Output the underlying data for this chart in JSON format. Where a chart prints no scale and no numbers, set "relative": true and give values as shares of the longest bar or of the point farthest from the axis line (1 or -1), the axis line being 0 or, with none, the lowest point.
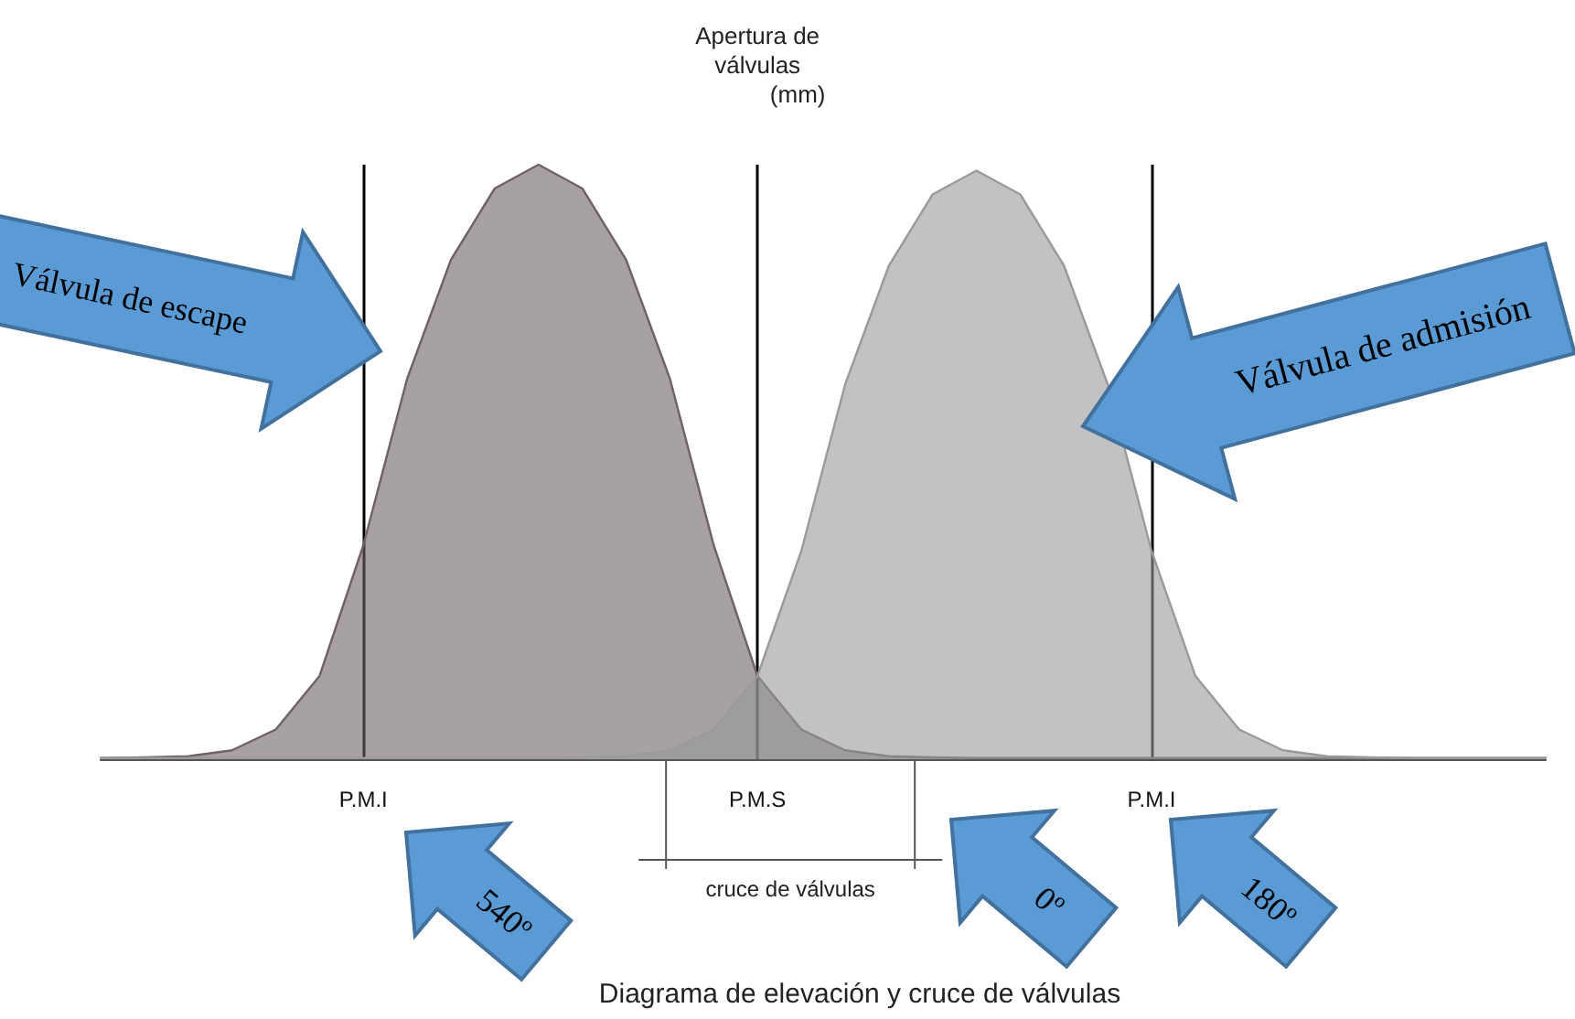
{
  "chart_data": {
    "type": "area",
    "relative": true,
    "ylabel": "Apertura de válvulas (mm)",
    "grid": "x",
    "marker": "none",
    "categories": [
      null,
      null,
      null,
      null,
      null,
      null,
      "P.M.I",
      null,
      null,
      null,
      null,
      null,
      null,
      null,
      null,
      "P.M.S",
      null,
      null,
      null,
      null,
      null,
      null,
      null,
      null,
      "P.M.I",
      null,
      null,
      null,
      null,
      null,
      null,
      null,
      null,
      null
    ],
    "series": [
      {
        "color": "#6e6266",
        "values": [
          0.002,
          0.003,
          0.005,
          0.015,
          0.05,
          0.14,
          0.36,
          0.64,
          0.84,
          0.96,
          1,
          0.96,
          0.84,
          0.64,
          0.36,
          0.14,
          0.05,
          0.015,
          0.005,
          0.003,
          0.002,
          0.002,
          0.002,
          0.002,
          0.002,
          0.002,
          0.002,
          0.002,
          0.002,
          0.002,
          0.002,
          0.002,
          0.002,
          0.002
        ]
      },
      {
        "color": "#9a9a9a",
        "values": [
          0.002,
          0.002,
          0.002,
          0.002,
          0.002,
          0.002,
          0.002,
          0.002,
          0.002,
          0.002,
          0.002,
          0.003,
          0.005,
          0.015,
          0.05,
          0.14,
          0.35,
          0.63,
          0.83,
          0.95,
          0.99,
          0.95,
          0.83,
          0.63,
          0.35,
          0.14,
          0.05,
          0.015,
          0.005,
          0.003,
          0.002,
          0.002,
          0.002,
          0.002
        ]
      }
    ],
    "annotations": [
      "Válvula de escape",
      "Válvula de admisión",
      "540º",
      "0º",
      "180º",
      "cruce de válvulas",
      "Diagrama de elevación y cruce de válvulas"
    ]
  }
}
